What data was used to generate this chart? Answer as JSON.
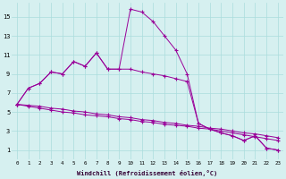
{
  "xlabel": "Windchill (Refroidissement éolien,°C)",
  "ylabel": "",
  "bg_color": "#d6f0f0",
  "line_color": "#990099",
  "grid_color": "#aadddd",
  "xlim": [
    -0.5,
    23.5
  ],
  "ylim": [
    0,
    16.5
  ],
  "xticks": [
    0,
    1,
    2,
    3,
    4,
    5,
    6,
    7,
    8,
    9,
    10,
    11,
    12,
    13,
    14,
    15,
    16,
    17,
    18,
    19,
    20,
    21,
    22,
    23
  ],
  "yticks": [
    1,
    3,
    5,
    7,
    9,
    11,
    13,
    15
  ],
  "series": [
    [
      5.8,
      7.5,
      8.0,
      9.2,
      9.0,
      10.3,
      9.8,
      11.2,
      9.5,
      9.5,
      15.8,
      15.5,
      14.5,
      13.0,
      11.5,
      9.0,
      3.8,
      3.2,
      2.8,
      2.5,
      2.0,
      2.5,
      1.2,
      1.0
    ],
    [
      5.8,
      7.5,
      8.0,
      9.2,
      9.0,
      10.3,
      9.8,
      11.2,
      9.5,
      9.5,
      9.5,
      9.2,
      9.0,
      8.8,
      8.5,
      8.2,
      3.8,
      3.2,
      2.8,
      2.5,
      2.0,
      2.5,
      1.2,
      1.0
    ],
    [
      5.8,
      5.6,
      5.4,
      5.2,
      5.0,
      4.9,
      4.7,
      4.6,
      4.5,
      4.3,
      4.2,
      4.0,
      3.9,
      3.7,
      3.6,
      3.5,
      3.3,
      3.2,
      3.0,
      2.8,
      2.6,
      2.4,
      2.2,
      2.0
    ],
    [
      5.8,
      5.7,
      5.6,
      5.4,
      5.3,
      5.1,
      5.0,
      4.8,
      4.7,
      4.5,
      4.4,
      4.2,
      4.1,
      3.9,
      3.8,
      3.6,
      3.5,
      3.3,
      3.2,
      3.0,
      2.8,
      2.7,
      2.5,
      2.3
    ]
  ]
}
